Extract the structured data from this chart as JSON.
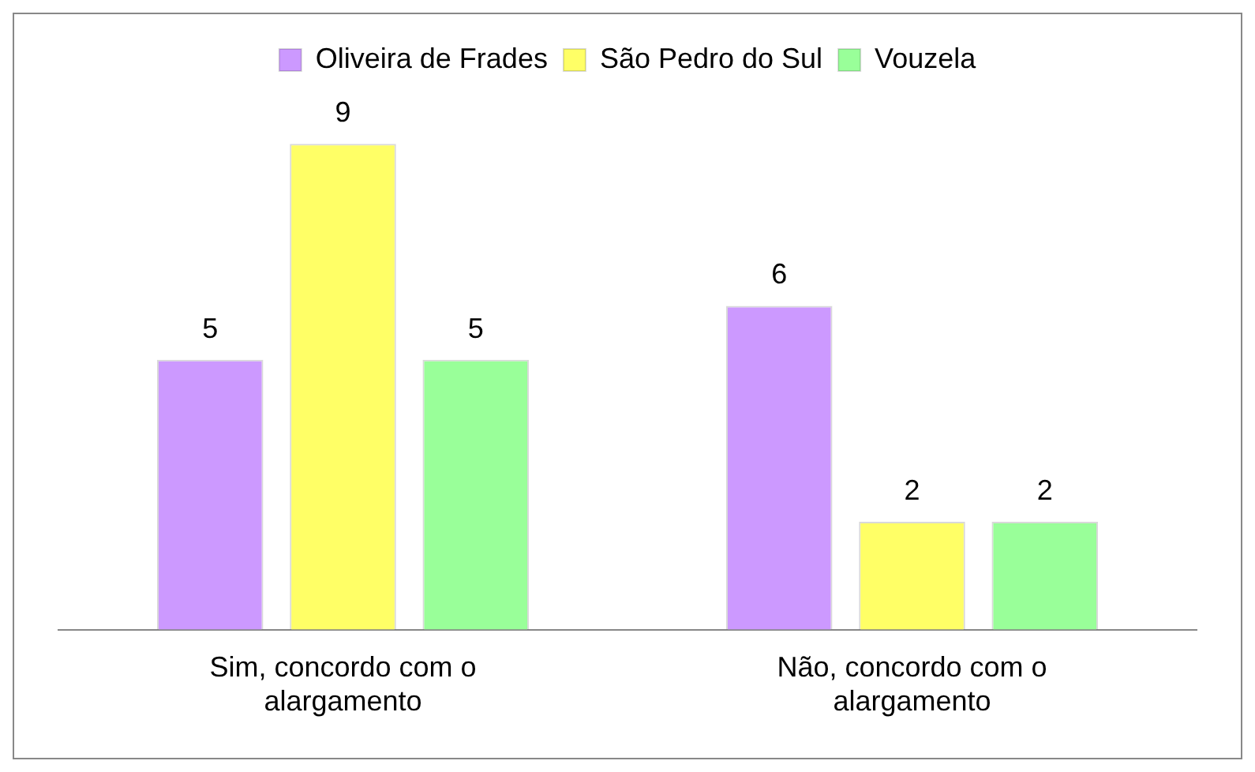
{
  "chart_data": {
    "type": "bar",
    "categories": [
      "Sim, concordo com o alargamento",
      "Não, concordo com o alargamento"
    ],
    "series": [
      {
        "name": "Oliveira de Frades",
        "color": "#cc99ff",
        "values": [
          5,
          6
        ]
      },
      {
        "name": "São Pedro do Sul",
        "color": "#ffff66",
        "values": [
          9,
          2
        ]
      },
      {
        "name": "Vouzela",
        "color": "#99ff99",
        "values": [
          5,
          2
        ]
      }
    ],
    "data_labels": true,
    "legend": "top",
    "grid": false
  }
}
